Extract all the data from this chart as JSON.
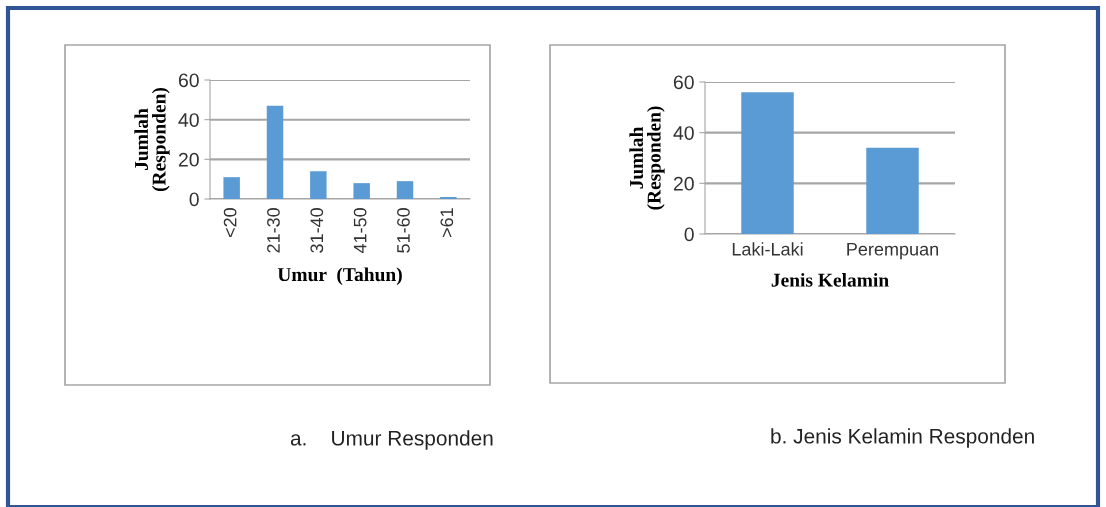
{
  "chart_data": [
    {
      "type": "bar",
      "categories": [
        "<20",
        "21-30",
        "31-40",
        "41-50",
        "51-60",
        ">61"
      ],
      "values": [
        11,
        47,
        14,
        8,
        9,
        1
      ],
      "color": "#5b9bd5",
      "ylim": [
        0,
        60
      ],
      "yticks": [
        0,
        20,
        40,
        60
      ],
      "grid": "y",
      "xlabel": "Umur  (Tahun)",
      "ylabel": "Jumlah\n(Responden)",
      "annotations": [
        "a.    Umur Responden"
      ]
    },
    {
      "type": "bar",
      "categories": [
        "Laki-Laki",
        "Perempuan"
      ],
      "values": [
        56,
        34
      ],
      "color": "#5b9bd5",
      "ylim": [
        0,
        60
      ],
      "yticks": [
        0,
        20,
        40,
        60
      ],
      "grid": "y",
      "xlabel": "Jenis Kelamin",
      "ylabel": "Jumlah\n(Responden)",
      "annotations": [
        "b. Jenis Kelamin Responden"
      ]
    }
  ]
}
